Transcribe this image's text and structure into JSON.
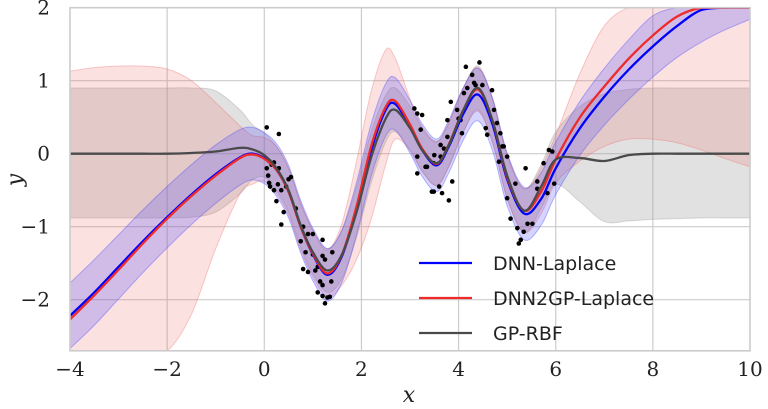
{
  "chart_data": {
    "type": "line",
    "title": "",
    "xlabel": "x",
    "ylabel": "y",
    "xlim": [
      -4,
      10
    ],
    "ylim": [
      -2.7,
      2
    ],
    "grid": true,
    "legend_position": "bottom-right",
    "x_ticks": [
      -4,
      -2,
      0,
      2,
      4,
      6,
      8,
      10
    ],
    "x_tick_labels": [
      "−4",
      "−2",
      "0",
      "2",
      "4",
      "6",
      "8",
      "10"
    ],
    "y_ticks": [
      -2,
      -1,
      0,
      1,
      2
    ],
    "y_tick_labels": [
      "−2",
      "−1",
      "0",
      "1",
      "2"
    ],
    "x": [
      -4,
      -3.5,
      -3,
      -2.5,
      -2,
      -1.5,
      -1,
      -0.5,
      -0.25,
      0,
      0.25,
      0.5,
      0.75,
      1,
      1.3,
      1.6,
      1.9,
      2.2,
      2.5,
      2.7,
      3,
      3.25,
      3.55,
      3.8,
      4.1,
      4.4,
      4.7,
      5,
      5.35,
      5.7,
      6,
      6.5,
      7,
      7.5,
      8,
      8.5,
      9,
      9.5,
      10
    ],
    "series": [
      {
        "name": "DNN-Laplace",
        "color": "#0000ff",
        "band_color": "#3b3bff",
        "mean": [
          -2.22,
          -1.9,
          -1.55,
          -1.2,
          -0.87,
          -0.56,
          -0.28,
          -0.05,
          0.0,
          -0.06,
          -0.22,
          -0.52,
          -1.0,
          -1.38,
          -1.66,
          -1.4,
          -0.75,
          0.05,
          0.6,
          0.68,
          0.37,
          0.05,
          -0.16,
          0.1,
          0.55,
          0.81,
          0.4,
          -0.35,
          -0.82,
          -0.62,
          -0.2,
          0.35,
          0.78,
          1.15,
          1.47,
          1.75,
          1.97,
          2.15,
          2.3
        ],
        "lower": [
          -2.67,
          -2.35,
          -1.99,
          -1.63,
          -1.29,
          -0.97,
          -0.68,
          -0.43,
          -0.36,
          -0.41,
          -0.58,
          -0.88,
          -1.36,
          -1.74,
          -2.02,
          -1.76,
          -1.11,
          -0.31,
          0.24,
          0.32,
          0.01,
          -0.31,
          -0.52,
          -0.26,
          0.19,
          0.45,
          0.04,
          -0.71,
          -1.18,
          -0.98,
          -0.56,
          -0.02,
          0.39,
          0.74,
          1.05,
          1.32,
          1.53,
          1.7,
          1.84
        ],
        "upper": [
          -1.77,
          -1.45,
          -1.11,
          -0.77,
          -0.45,
          -0.15,
          0.12,
          0.33,
          0.36,
          0.29,
          0.14,
          -0.16,
          -0.64,
          -1.02,
          -1.3,
          -1.04,
          -0.39,
          0.41,
          0.96,
          1.04,
          0.73,
          0.41,
          0.2,
          0.46,
          0.91,
          1.17,
          0.76,
          0.01,
          -0.46,
          -0.26,
          0.16,
          0.72,
          1.17,
          1.56,
          1.89,
          2.18,
          2.41,
          2.6,
          2.76
        ]
      },
      {
        "name": "DNN2GP-Laplace",
        "color": "#ee2a2a",
        "band_color": "#f26a6a",
        "mean": [
          -2.27,
          -1.94,
          -1.59,
          -1.23,
          -0.89,
          -0.58,
          -0.3,
          -0.06,
          -0.01,
          -0.07,
          -0.22,
          -0.52,
          -1.0,
          -1.37,
          -1.64,
          -1.38,
          -0.72,
          0.1,
          0.64,
          0.72,
          0.4,
          0.07,
          -0.14,
          0.13,
          0.6,
          0.88,
          0.45,
          -0.32,
          -0.78,
          -0.52,
          -0.08,
          0.5,
          0.92,
          1.3,
          1.62,
          1.88,
          2.1,
          2.3,
          2.45
        ],
        "lower": [
          -5.7,
          -5.1,
          -4.5,
          -3.8,
          -3.0,
          -2.2,
          -1.3,
          -0.55,
          -0.42,
          -0.38,
          -0.54,
          -0.84,
          -1.32,
          -1.69,
          -1.96,
          -1.8,
          -1.45,
          -0.9,
          -0.15,
          0.2,
          0.05,
          -0.23,
          -0.44,
          -0.17,
          0.3,
          0.58,
          0.15,
          -0.62,
          -1.08,
          -0.82,
          -0.4,
          -0.1,
          0.1,
          0.2,
          0.2,
          0.15,
          0.05,
          -0.07,
          -0.18
        ],
        "upper": [
          1.13,
          1.18,
          1.2,
          1.2,
          1.16,
          1.0,
          0.7,
          0.38,
          0.25,
          0.22,
          0.1,
          -0.2,
          -0.68,
          -1.05,
          -1.32,
          -0.95,
          -0.1,
          0.85,
          1.42,
          1.3,
          0.75,
          0.37,
          0.16,
          0.43,
          0.9,
          1.18,
          0.75,
          -0.02,
          -0.48,
          -0.2,
          0.25,
          1.1,
          1.75,
          2.45,
          3.1,
          3.7,
          4.2,
          4.7,
          5.2
        ]
      },
      {
        "name": "GP-RBF",
        "color": "#4a4a4a",
        "band_color": "#9a9a9a",
        "mean": [
          0,
          0,
          0,
          0,
          0,
          0.01,
          0.03,
          0.08,
          0.06,
          -0.02,
          -0.2,
          -0.5,
          -0.98,
          -1.35,
          -1.6,
          -1.38,
          -0.8,
          -0.05,
          0.48,
          0.6,
          0.35,
          0.05,
          -0.13,
          0.12,
          0.6,
          0.9,
          0.45,
          -0.3,
          -0.78,
          -0.45,
          -0.08,
          -0.06,
          -0.1,
          -0.02,
          0,
          0,
          0,
          0,
          0
        ],
        "lower": [
          -0.88,
          -0.88,
          -0.88,
          -0.88,
          -0.88,
          -0.87,
          -0.8,
          -0.55,
          -0.36,
          -0.32,
          -0.5,
          -0.8,
          -1.28,
          -1.65,
          -1.9,
          -1.71,
          -1.15,
          -0.4,
          0.16,
          0.3,
          0.05,
          -0.25,
          -0.43,
          -0.18,
          0.3,
          0.6,
          0.15,
          -0.6,
          -1.08,
          -0.75,
          -0.42,
          -0.66,
          -0.93,
          -0.92,
          -0.9,
          -0.89,
          -0.88,
          -0.88,
          -0.88
        ],
        "upper": [
          0.9,
          0.9,
          0.9,
          0.9,
          0.9,
          0.9,
          0.86,
          0.6,
          0.4,
          0.28,
          0.1,
          -0.2,
          -0.68,
          -1.05,
          -1.3,
          -1.05,
          -0.45,
          0.3,
          0.8,
          0.9,
          0.65,
          0.35,
          0.17,
          0.42,
          0.9,
          1.2,
          0.75,
          0.0,
          -0.48,
          -0.15,
          0.3,
          0.65,
          0.82,
          0.88,
          0.9,
          0.9,
          0.9,
          0.9,
          0.9
        ]
      }
    ],
    "points": [
      [
        0.05,
        0.36
      ],
      [
        0.3,
        0.27
      ],
      [
        0.1,
        -0.1
      ],
      [
        0.15,
        -0.15
      ],
      [
        0.2,
        -0.12
      ],
      [
        0.05,
        -0.2
      ],
      [
        0.08,
        -0.3
      ],
      [
        0.1,
        -0.4
      ],
      [
        0.12,
        -0.45
      ],
      [
        0.2,
        -0.5
      ],
      [
        0.28,
        -0.42
      ],
      [
        0.35,
        -0.5
      ],
      [
        0.45,
        -0.45
      ],
      [
        0.5,
        -0.35
      ],
      [
        0.55,
        -0.32
      ],
      [
        0.3,
        -0.2
      ],
      [
        0.25,
        -0.65
      ],
      [
        0.4,
        -0.8
      ],
      [
        0.35,
        -0.97
      ],
      [
        0.8,
        -1.0
      ],
      [
        0.75,
        -1.2
      ],
      [
        0.9,
        -1.1
      ],
      [
        1.0,
        -1.1
      ],
      [
        0.85,
        -1.35
      ],
      [
        1.0,
        -1.38
      ],
      [
        1.2,
        -1.18
      ],
      [
        1.2,
        -1.4
      ],
      [
        1.25,
        -1.45
      ],
      [
        1.1,
        -1.55
      ],
      [
        0.8,
        -1.58
      ],
      [
        0.9,
        -1.62
      ],
      [
        1.05,
        -1.6
      ],
      [
        1.15,
        -1.75
      ],
      [
        1.2,
        -1.8
      ],
      [
        1.1,
        -1.9
      ],
      [
        1.2,
        -1.95
      ],
      [
        1.3,
        -1.97
      ],
      [
        1.35,
        -1.96
      ],
      [
        1.25,
        -2.05
      ],
      [
        1.38,
        -1.75
      ],
      [
        1.4,
        -1.35
      ],
      [
        0.65,
        -0.75
      ],
      [
        3.09,
        0.62
      ],
      [
        3.25,
        0.53
      ],
      [
        3.15,
        0.55
      ],
      [
        3.22,
        0.33
      ],
      [
        3.15,
        -0.04
      ],
      [
        3.15,
        -0.27
      ],
      [
        3.35,
        -0.18
      ],
      [
        3.49,
        -0.13
      ],
      [
        3.5,
        -0.02
      ],
      [
        3.63,
        0.12
      ],
      [
        3.7,
        0.07
      ],
      [
        3.77,
        0.23
      ],
      [
        3.84,
        0.71
      ],
      [
        3.97,
        0.6
      ],
      [
        4.04,
        0.46
      ],
      [
        4.07,
        0.28
      ],
      [
        4.11,
        0.83
      ],
      [
        4.18,
        0.9
      ],
      [
        4.15,
        1.19
      ],
      [
        4.28,
        1.08
      ],
      [
        4.32,
        0.97
      ],
      [
        4.43,
        1.25
      ],
      [
        4.49,
        0.94
      ],
      [
        4.69,
        0.87
      ],
      [
        4.73,
        0.6
      ],
      [
        4.56,
        0.35
      ],
      [
        4.59,
        0.26
      ],
      [
        4.79,
        0.42
      ],
      [
        4.9,
        0.1
      ],
      [
        4.83,
        -0.11
      ],
      [
        4.93,
        0.1
      ],
      [
        5.0,
        -0.61
      ],
      [
        5.17,
        -0.41
      ],
      [
        5.07,
        -0.89
      ],
      [
        5.21,
        -1.02
      ],
      [
        5.34,
        -1.07
      ],
      [
        5.28,
        -1.18
      ],
      [
        5.24,
        -1.23
      ],
      [
        5.38,
        -0.2
      ],
      [
        5.52,
        -0.96
      ],
      [
        5.42,
        -0.96
      ],
      [
        5.62,
        -0.38
      ],
      [
        5.75,
        -0.13
      ],
      [
        5.86,
        0.05
      ],
      [
        5.93,
        0.03
      ],
      [
        5.97,
        -0.41
      ],
      [
        3.66,
        -0.54
      ],
      [
        3.49,
        -0.52
      ],
      [
        3.45,
        -0.52
      ],
      [
        3.8,
        -0.64
      ],
      [
        3.87,
        -0.38
      ],
      [
        3.6,
        -0.45
      ],
      [
        3.77,
        0.46
      ],
      [
        4.0,
        0.48
      ],
      [
        4.35,
        0.94
      ],
      [
        5.83,
        -0.54
      ],
      [
        5.62,
        -0.48
      ],
      [
        5.0,
        -0.04
      ],
      [
        4.86,
        0.28
      ],
      [
        3.63,
        -0.04
      ],
      [
        3.32,
        -0.18
      ]
    ]
  }
}
